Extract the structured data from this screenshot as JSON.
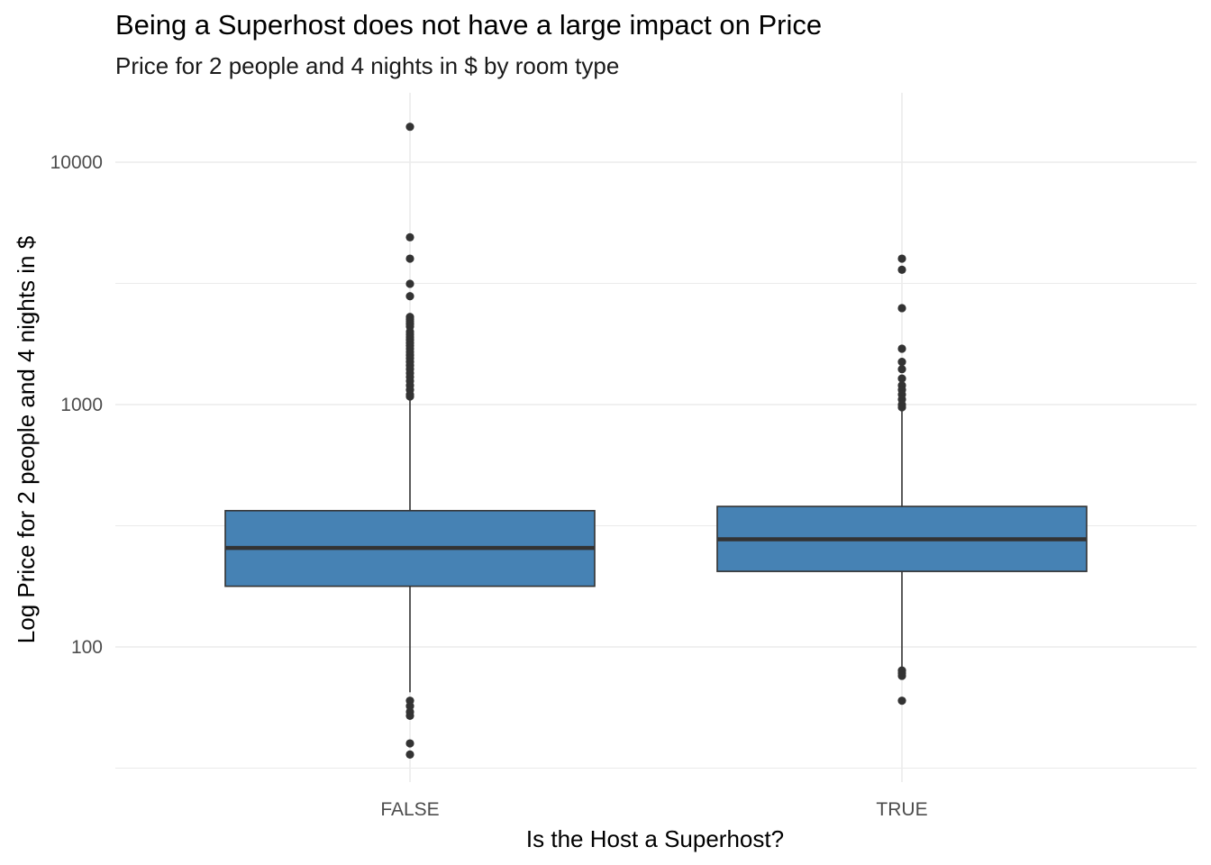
{
  "chart_data": {
    "type": "box",
    "title": "Being a Superhost does not have a large impact on Price",
    "subtitle": "Price for 2 people and 4 nights in $ by room type",
    "xlabel": "Is the Host a Superhost?",
    "ylabel": "Log Price for 2 people and 4 nights in $",
    "y_scale": "log10",
    "ylim": [
      30,
      16500
    ],
    "y_ticks": [
      100,
      1000,
      10000
    ],
    "y_tick_labels": [
      "100",
      "1000",
      "10000"
    ],
    "grid": true,
    "categories": [
      "FALSE",
      "TRUE"
    ],
    "boxes": [
      {
        "category": "FALSE",
        "whisker_low": 65,
        "q1": 178,
        "median": 256,
        "q3": 365,
        "whisker_high": 1050,
        "outliers": [
          14000,
          4900,
          4000,
          3150,
          2800,
          2300,
          2250,
          2200,
          2150,
          2100,
          2000,
          1950,
          1900,
          1850,
          1800,
          1750,
          1700,
          1650,
          1600,
          1550,
          1500,
          1450,
          1400,
          1350,
          1300,
          1250,
          1200,
          1150,
          1100,
          1080,
          60,
          57,
          54,
          52,
          40,
          36
        ]
      },
      {
        "category": "TRUE",
        "whisker_low": 82,
        "q1": 205,
        "median": 278,
        "q3": 380,
        "whisker_high": 970,
        "outliers": [
          4000,
          3600,
          2500,
          1700,
          1500,
          1400,
          1280,
          1200,
          1150,
          1100,
          1050,
          1000,
          975,
          80,
          78,
          76,
          60
        ]
      }
    ],
    "colors": {
      "box_fill": "#4682b4",
      "box_stroke": "#333333",
      "grid": "#ebebeb"
    }
  }
}
